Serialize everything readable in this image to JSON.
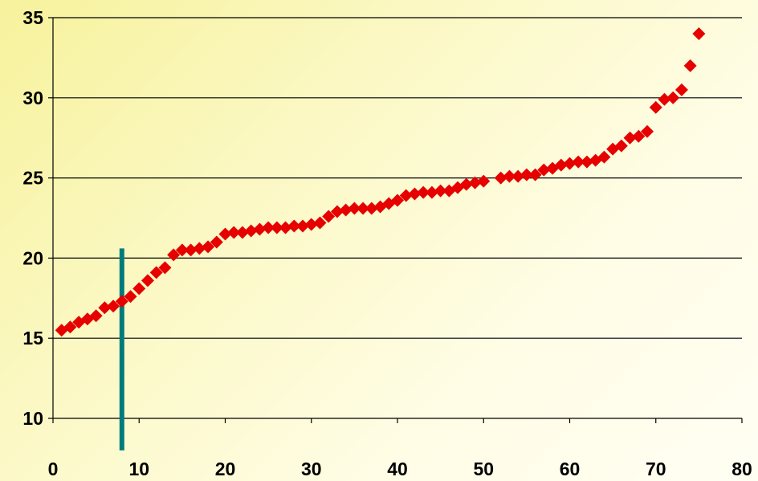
{
  "chart_data": {
    "type": "scatter",
    "title": "",
    "xlabel": "",
    "ylabel": "",
    "xlim": [
      0,
      80
    ],
    "ylim": [
      10,
      35
    ],
    "xticks": [
      "0",
      "10",
      "20",
      "30",
      "40",
      "50",
      "60",
      "70",
      "80"
    ],
    "yticks": [
      "10",
      "15",
      "20",
      "25",
      "30",
      "35"
    ],
    "grid": "horizontal",
    "legend": "none",
    "marker": "diamond",
    "marker_color": "#e60000",
    "vertical_line": {
      "x": 8,
      "y_range": [
        8,
        20.6
      ],
      "color": "#007b7b"
    },
    "series": [
      {
        "x": [
          1,
          2,
          3,
          4,
          5,
          6,
          7,
          8,
          9,
          10,
          11,
          12,
          13,
          14,
          15,
          16,
          17,
          18,
          19,
          20,
          21,
          22,
          23,
          24,
          25,
          26,
          27,
          28,
          29,
          30,
          31,
          32,
          33,
          34,
          35,
          36,
          37,
          38,
          39,
          40,
          41,
          42,
          43,
          44,
          45,
          46,
          47,
          48,
          49,
          50,
          52,
          53,
          54,
          55,
          56,
          57,
          58,
          59,
          60,
          61,
          62,
          63,
          64,
          65,
          66,
          67,
          68,
          69,
          70,
          71,
          72,
          73,
          74,
          75
        ],
        "y": [
          15.5,
          15.7,
          16.0,
          16.2,
          16.4,
          16.9,
          17.0,
          17.3,
          17.6,
          18.1,
          18.6,
          19.1,
          19.4,
          20.2,
          20.5,
          20.5,
          20.6,
          20.7,
          21.0,
          21.5,
          21.6,
          21.6,
          21.7,
          21.8,
          21.9,
          21.9,
          21.9,
          22.0,
          22.0,
          22.1,
          22.2,
          22.6,
          22.9,
          23.0,
          23.1,
          23.1,
          23.1,
          23.2,
          23.4,
          23.6,
          23.9,
          24.0,
          24.1,
          24.1,
          24.2,
          24.2,
          24.4,
          24.6,
          24.7,
          24.8,
          25.0,
          25.1,
          25.1,
          25.2,
          25.2,
          25.5,
          25.6,
          25.8,
          25.9,
          26.0,
          26.0,
          26.1,
          26.3,
          26.8,
          27.0,
          27.5,
          27.6,
          27.9,
          29.4,
          29.9,
          30.0,
          30.5,
          32.0,
          34.0
        ]
      }
    ]
  }
}
